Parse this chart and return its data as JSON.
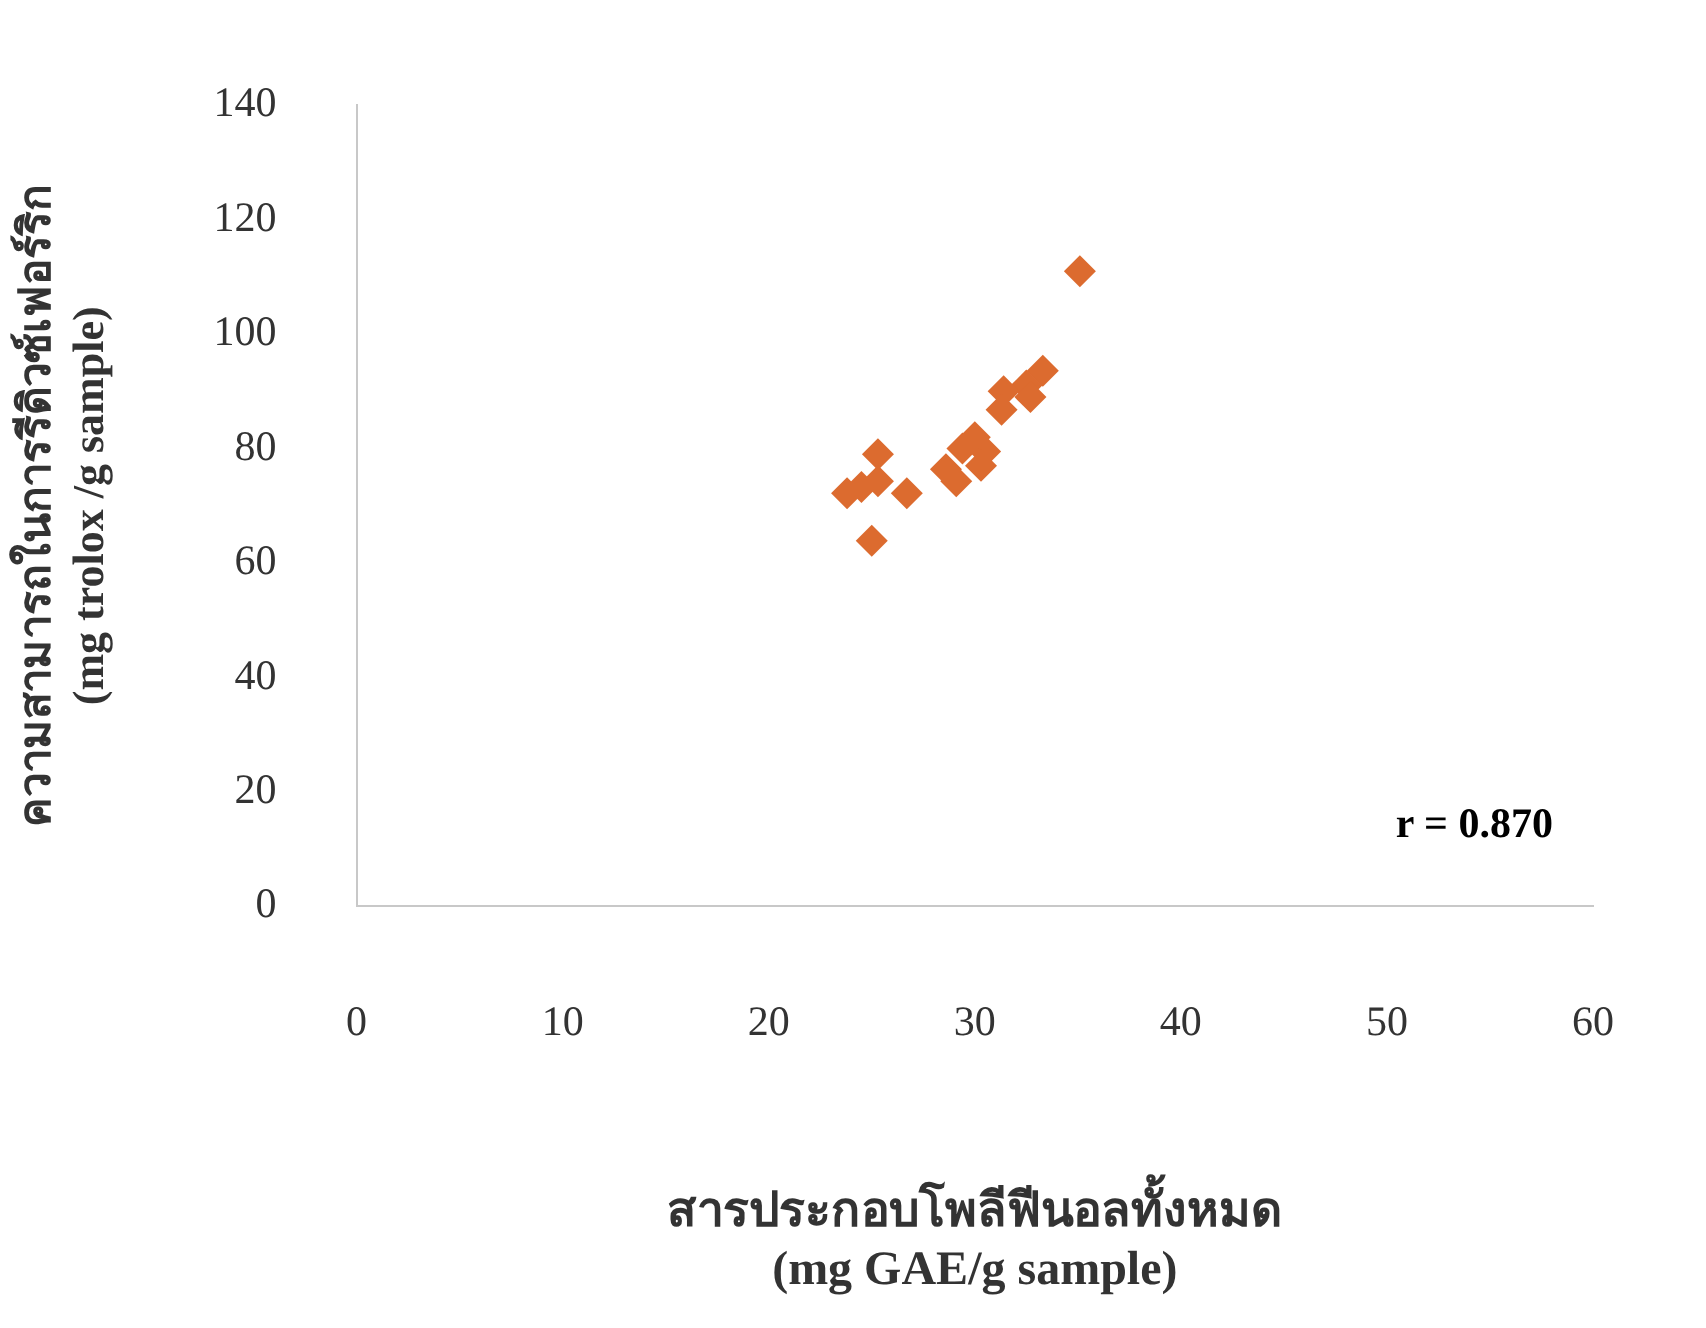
{
  "chart_data": {
    "type": "scatter",
    "xlabel": "สารประกอบโพลีฟีนอลทั้งหมด\n(mg GAE/g sample)",
    "ylabel": "ความสามารถในการรีดิวซ์เฟอร์ริก\n(mg trolox /g sample)",
    "x": [
      35.1,
      33.3,
      32.5,
      31.4,
      32.7,
      31.3,
      30.0,
      30.5,
      29.4,
      28.6,
      29.1,
      30.3,
      25.3,
      24.5,
      25.3,
      26.7,
      25.0,
      23.8
    ],
    "series": [
      {
        "color": "#dc6b2f",
        "values": [
          111,
          93.6,
          91,
          90,
          89,
          86.8,
          82,
          79.5,
          80,
          76.4,
          74.3,
          77,
          79,
          73.3,
          74.3,
          72.2,
          63.9,
          72.2
        ]
      }
    ],
    "xlim": [
      0,
      60
    ],
    "xticks": [
      0,
      10,
      20,
      30,
      40,
      50,
      60
    ],
    "ylim": [
      0,
      140
    ],
    "yticks": [
      0,
      20,
      40,
      60,
      80,
      100,
      120,
      140
    ],
    "grid": false,
    "legend": false,
    "marker": "diamond",
    "annotations": [
      "r = 0.870"
    ]
  }
}
